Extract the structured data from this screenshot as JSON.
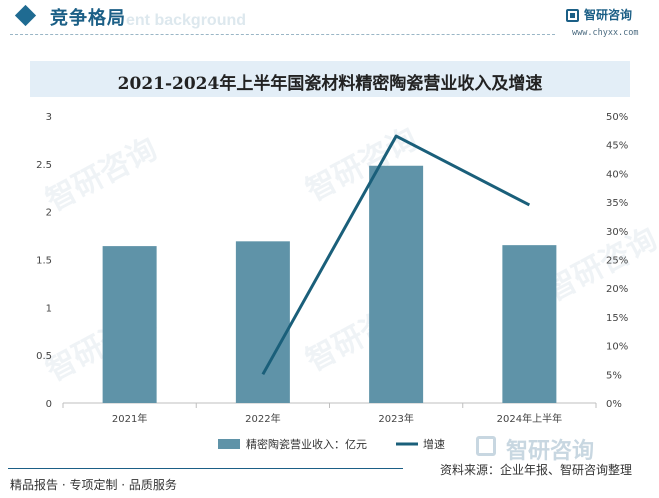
{
  "header": {
    "title": "竞争格局",
    "ghost_text": "ent background",
    "brand_name": "智研咨询",
    "brand_url": "www.chyxx.com"
  },
  "chart_data": {
    "type": "bar",
    "title": "2021-2024年上半年国瓷材料精密陶瓷营业收入及增速",
    "categories": [
      "2021年",
      "2022年",
      "2023年",
      "2024年上半年"
    ],
    "series": [
      {
        "name": "精密陶瓷营业收入：亿元",
        "type": "bar",
        "axis": "left",
        "color": "#5f93a8",
        "values": [
          1.64,
          1.69,
          2.48,
          1.65
        ]
      },
      {
        "name": "增速",
        "type": "line",
        "axis": "right",
        "color": "#1a5f7a",
        "values": [
          null,
          5.0,
          46.5,
          34.5
        ]
      }
    ],
    "y_left": {
      "ylim": [
        0,
        3
      ],
      "ticks": [
        "0",
        "0.5",
        "1",
        "1.5",
        "2",
        "2.5",
        "3"
      ]
    },
    "y_right": {
      "ylim": [
        0,
        50
      ],
      "ticks": [
        "0%",
        "5%",
        "10%",
        "15%",
        "20%",
        "25%",
        "30%",
        "35%",
        "40%",
        "45%",
        "50%"
      ]
    },
    "grid": false,
    "legend_position": "bottom"
  },
  "watermark": {
    "text": "智研咨询"
  },
  "footer": {
    "left": "精品报告 · 专项定制 · 品质服务",
    "right": "资料来源：企业年报、智研咨询整理",
    "brand": "智研咨询"
  }
}
